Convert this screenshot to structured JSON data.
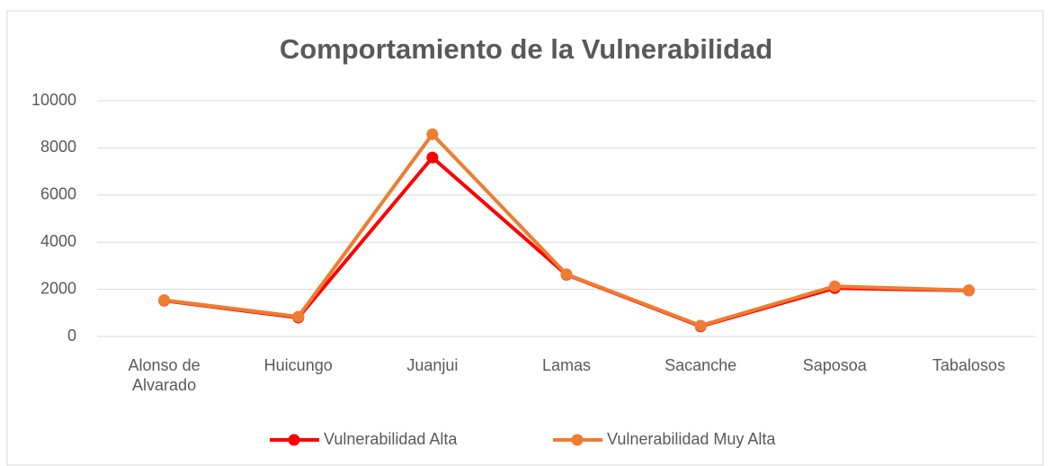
{
  "chart_data": {
    "type": "line",
    "title": "Comportamiento de la Vulnerabilidad",
    "categories": [
      "Alonso de Alvarado",
      "Huicungo",
      "Juanjui",
      "Lamas",
      "Sacanche",
      "Saposoa",
      "Tabalosos"
    ],
    "series": [
      {
        "name": "Vulnerabilidad Alta",
        "color": "#ff0000",
        "values": [
          1520,
          800,
          7590,
          2620,
          430,
          2050,
          1950
        ]
      },
      {
        "name": "Vulnerabilidad Muy Alta",
        "color": "#ed7d31",
        "values": [
          1540,
          840,
          8580,
          2640,
          460,
          2130,
          1960
        ]
      }
    ],
    "ylim": [
      0,
      10000
    ],
    "yticks": [
      0,
      2000,
      4000,
      6000,
      8000,
      10000
    ],
    "grid": true,
    "legend": "bottom"
  }
}
